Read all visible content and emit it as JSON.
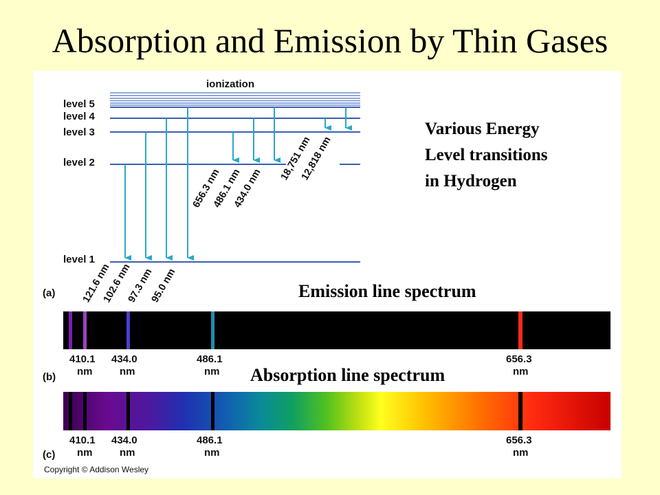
{
  "slide": {
    "title": "Absorption and Emission by Thin Gases"
  },
  "diagram": {
    "ionization_label": "ionization",
    "levels": [
      "level 5",
      "level 4",
      "level 3",
      "level 2",
      "level 1"
    ],
    "lyman_wavelengths": [
      "121.6 nm",
      "102.6 nm",
      "97.3 nm",
      "95.0 nm"
    ],
    "balmer_wavelengths": [
      "656.3 nm",
      "486.1 nm",
      "434.0 nm"
    ],
    "paschen_wavelengths": [
      "18,751 nm",
      "12,818 nm"
    ],
    "caption_lines": [
      "Various Energy",
      "Level transitions",
      "in Hydrogen"
    ],
    "line_color": "#2aa8c8",
    "level_color": "#3a5fb0"
  },
  "spectra": {
    "part_labels": [
      "(a)",
      "(b)",
      "(c)"
    ],
    "emission_title": "Emission line spectrum",
    "absorption_title": "Absorption line spectrum",
    "lines": [
      {
        "value": "410.1",
        "unit": "nm"
      },
      {
        "value": "434.0",
        "unit": "nm"
      },
      {
        "value": "486.1",
        "unit": "nm"
      },
      {
        "value": "656.3",
        "unit": "nm"
      }
    ],
    "emission_colors": [
      "#7a1fb0",
      "#a040c0",
      "#4a3fd0",
      "#1f8fb0",
      "#ff2a1a"
    ]
  },
  "copyright": "Copyright © Addison Wesley"
}
